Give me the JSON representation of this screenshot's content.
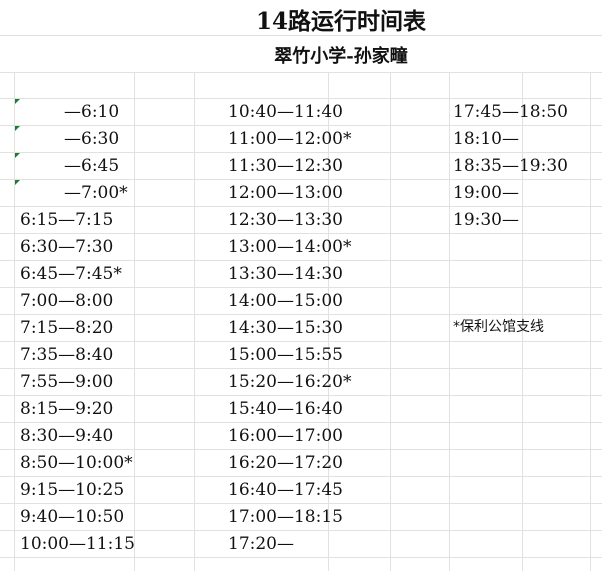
{
  "title": "14路运行时间表",
  "subtitle": "翠竹小学-孙家疃",
  "columns": [
    [
      "—6:10",
      "—6:30",
      "—6:45",
      "—7:00*",
      "6:15—7:15",
      "6:30—7:30",
      "6:45—7:45*",
      "7:00—8:00",
      "7:15—8:20",
      "7:35—8:40",
      "7:55—9:00",
      "8:15—9:20",
      "8:30—9:40",
      "8:50—10:00*",
      "9:15—10:25",
      "9:40—10:50",
      "10:00—11:15"
    ],
    [
      "10:40—11:40",
      "11:00—12:00*",
      "11:30—12:30",
      "12:00—13:00",
      "12:30—13:30",
      "13:00—14:00*",
      "13:30—14:30",
      "14:00—15:00",
      "14:30—15:30",
      "15:00—15:55",
      "15:20—16:20*",
      "15:40—16:40",
      "16:00—17:00",
      "16:20—17:20",
      "16:40—17:45",
      "17:00—18:15",
      "17:20—"
    ],
    [
      "17:45—18:50",
      "18:10—",
      "18:35—19:30",
      "19:00—",
      "19:30—"
    ]
  ],
  "note": "*保利公馆支线",
  "colors": {
    "grid": "#e1e1e1",
    "error_marker": "#1a7f2c"
  }
}
